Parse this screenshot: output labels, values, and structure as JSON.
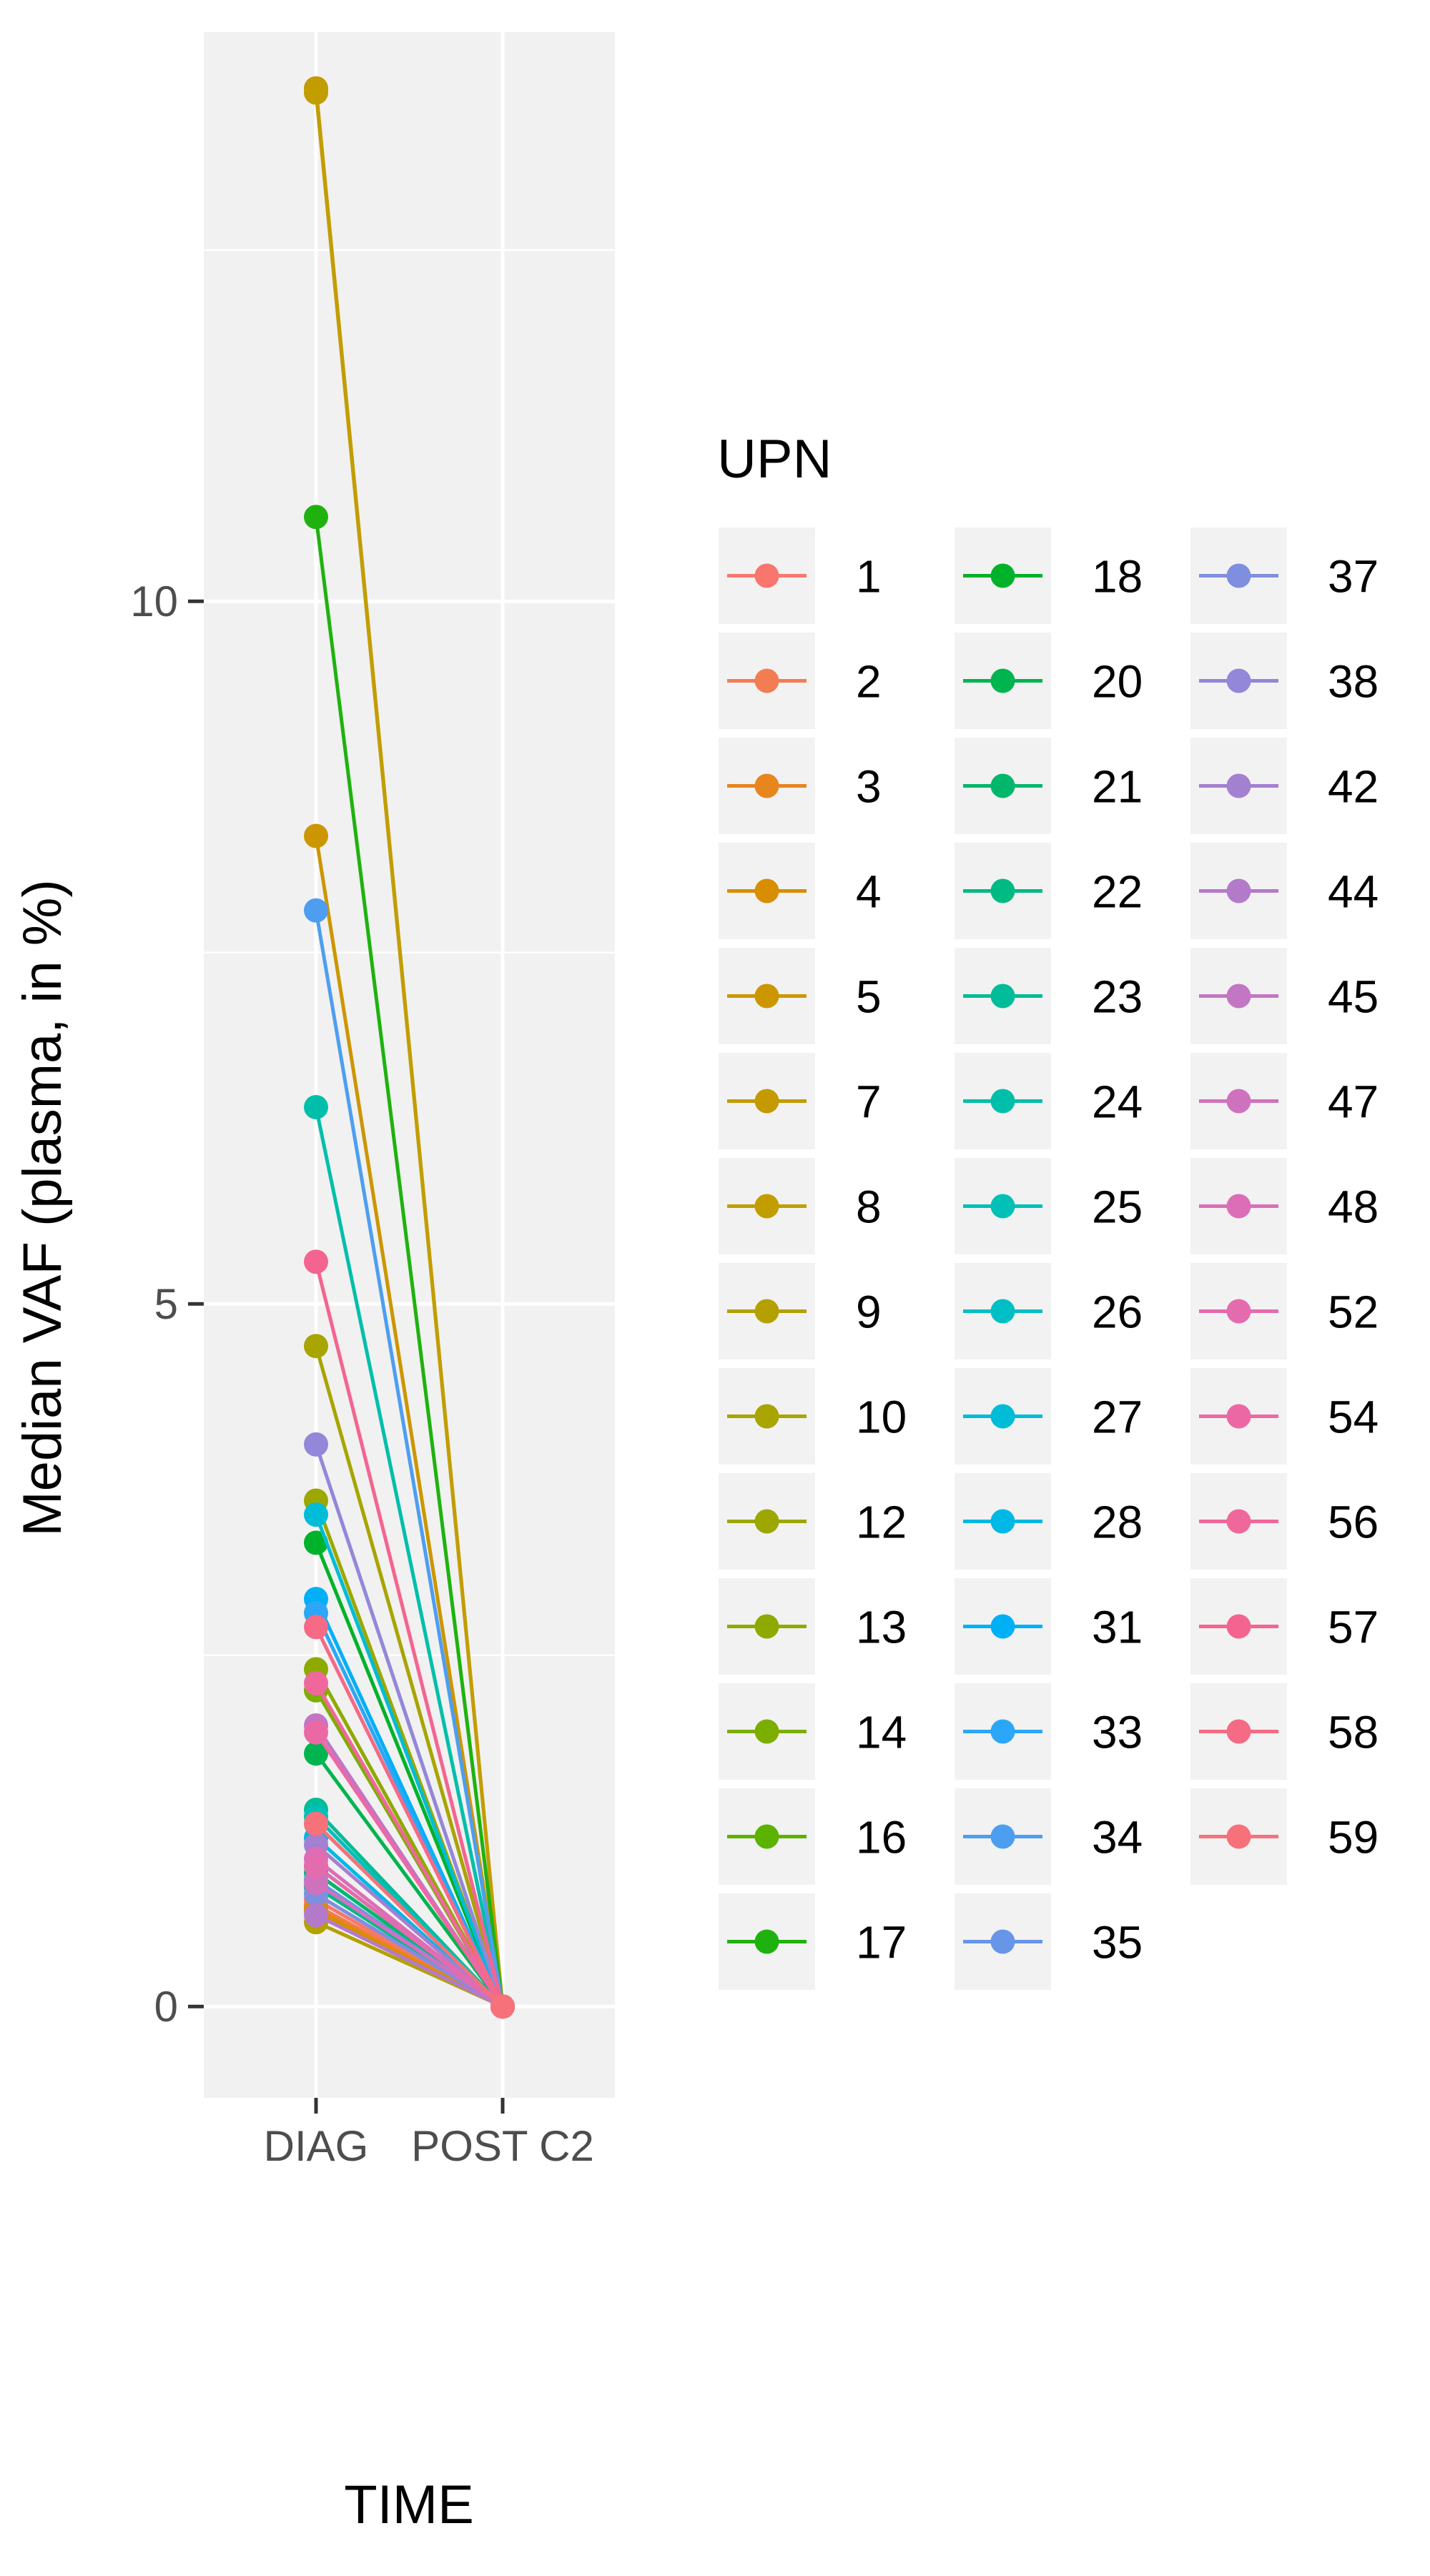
{
  "chart_data": {
    "type": "line",
    "xlabel": "TIME",
    "ylabel": "Median VAF (plasma, in %)",
    "x": [
      "DIAG",
      "POST C2"
    ],
    "ylim": [
      -0.65,
      14.05
    ],
    "yticks": [
      0,
      5,
      10
    ],
    "grid": true,
    "legend": {
      "title": "UPN",
      "position": "right",
      "ncol": 3
    },
    "series": [
      {
        "name": "1",
        "color": "#F8766D",
        "values": [
          0.76,
          0
        ]
      },
      {
        "name": "2",
        "color": "#F27D52",
        "values": [
          0.72,
          0
        ]
      },
      {
        "name": "3",
        "color": "#E7851E",
        "values": [
          0.7,
          0
        ]
      },
      {
        "name": "4",
        "color": "#D98D00",
        "values": [
          0.68,
          0
        ]
      },
      {
        "name": "5",
        "color": "#CC9600",
        "values": [
          8.33,
          0
        ]
      },
      {
        "name": "7",
        "color": "#C49A00",
        "values": [
          13.65,
          0
        ]
      },
      {
        "name": "8",
        "color": "#C29D00",
        "values": [
          13.62,
          0
        ]
      },
      {
        "name": "9",
        "color": "#B4A000",
        "values": [
          0.6,
          0
        ]
      },
      {
        "name": "10",
        "color": "#A8A400",
        "values": [
          4.7,
          0
        ]
      },
      {
        "name": "12",
        "color": "#9CA700",
        "values": [
          3.6,
          0
        ]
      },
      {
        "name": "13",
        "color": "#8EAA00",
        "values": [
          2.4,
          0
        ]
      },
      {
        "name": "14",
        "color": "#7CAE00",
        "values": [
          2.25,
          0
        ]
      },
      {
        "name": "16",
        "color": "#5BB300",
        "values": [
          1.0,
          0
        ]
      },
      {
        "name": "17",
        "color": "#1FB20F",
        "values": [
          10.6,
          0
        ]
      },
      {
        "name": "18",
        "color": "#00B22A",
        "values": [
          3.3,
          0
        ]
      },
      {
        "name": "20",
        "color": "#00B44F",
        "values": [
          1.8,
          0
        ]
      },
      {
        "name": "21",
        "color": "#00B76C",
        "values": [
          0.95,
          0
        ]
      },
      {
        "name": "22",
        "color": "#00BA83",
        "values": [
          0.85,
          0
        ]
      },
      {
        "name": "23",
        "color": "#00BC98",
        "values": [
          1.4,
          0
        ]
      },
      {
        "name": "24",
        "color": "#00BFAA",
        "values": [
          6.4,
          0
        ]
      },
      {
        "name": "25",
        "color": "#00C0B8",
        "values": [
          1.35,
          0
        ]
      },
      {
        "name": "26",
        "color": "#00BFC4",
        "values": [
          1.3,
          0
        ]
      },
      {
        "name": "27",
        "color": "#00BCD6",
        "values": [
          3.5,
          0
        ]
      },
      {
        "name": "28",
        "color": "#00B8E5",
        "values": [
          1.2,
          0
        ]
      },
      {
        "name": "31",
        "color": "#00B0F6",
        "values": [
          2.9,
          0
        ]
      },
      {
        "name": "33",
        "color": "#2CA7F7",
        "values": [
          2.8,
          0
        ]
      },
      {
        "name": "34",
        "color": "#4D9EF0",
        "values": [
          7.8,
          0
        ]
      },
      {
        "name": "35",
        "color": "#6795E7",
        "values": [
          0.9,
          0
        ]
      },
      {
        "name": "37",
        "color": "#7F8EDF",
        "values": [
          0.8,
          0
        ]
      },
      {
        "name": "38",
        "color": "#9287D8",
        "values": [
          4.0,
          0
        ]
      },
      {
        "name": "42",
        "color": "#A380D0",
        "values": [
          1.15,
          0
        ]
      },
      {
        "name": "44",
        "color": "#B37ACA",
        "values": [
          0.65,
          0
        ]
      },
      {
        "name": "45",
        "color": "#C276C4",
        "values": [
          2.0,
          0
        ]
      },
      {
        "name": "47",
        "color": "#CF72BE",
        "values": [
          0.88,
          0
        ]
      },
      {
        "name": "48",
        "color": "#DB6EB7",
        "values": [
          1.05,
          0
        ]
      },
      {
        "name": "52",
        "color": "#E46BAE",
        "values": [
          1.0,
          0
        ]
      },
      {
        "name": "54",
        "color": "#EC68A5",
        "values": [
          1.95,
          0
        ]
      },
      {
        "name": "56",
        "color": "#F0679B",
        "values": [
          2.3,
          0
        ]
      },
      {
        "name": "57",
        "color": "#F36590",
        "values": [
          5.3,
          0
        ]
      },
      {
        "name": "58",
        "color": "#F56A84",
        "values": [
          2.7,
          0
        ]
      },
      {
        "name": "59",
        "color": "#F6717A",
        "values": [
          1.3,
          0
        ]
      }
    ]
  }
}
